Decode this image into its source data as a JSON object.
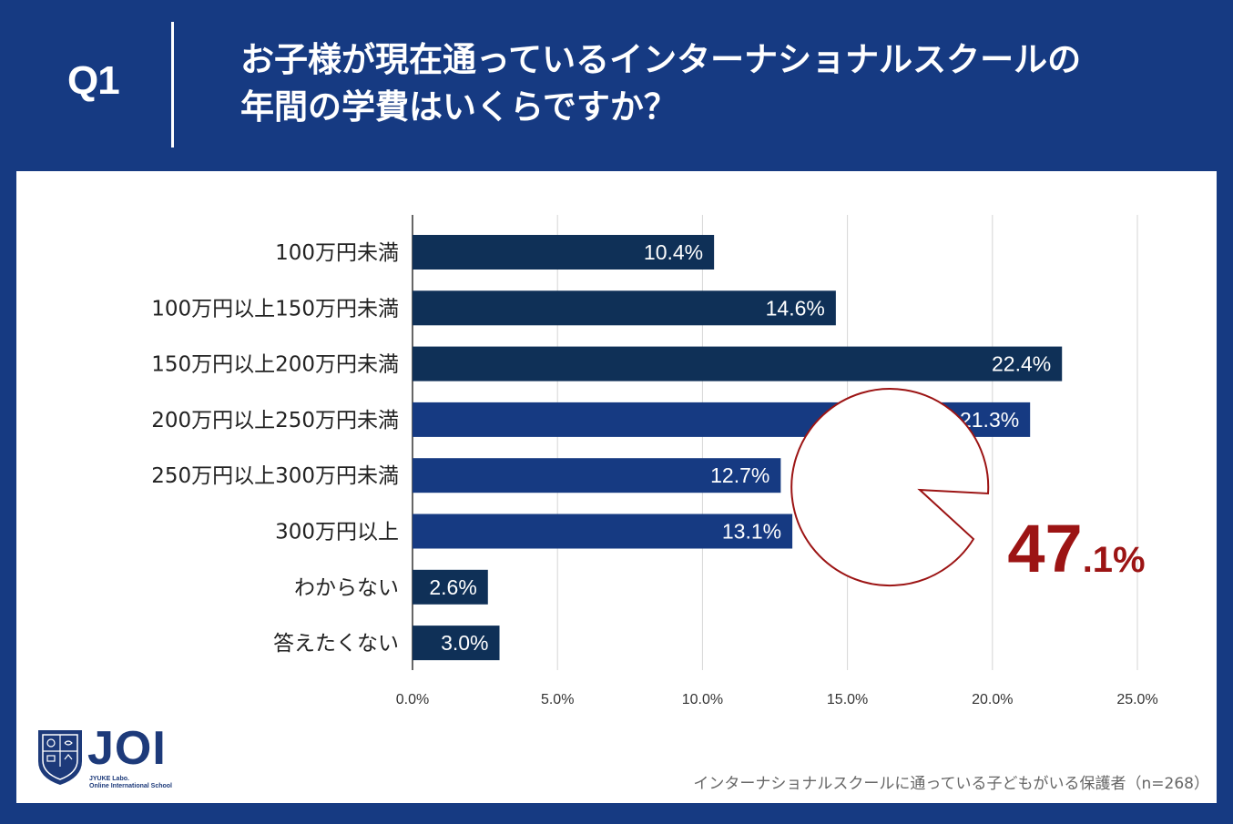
{
  "header": {
    "q_label": "Q1",
    "title_line1": "お子様が現在通っているインターナショナルスクールの",
    "title_line2": "年間の学費はいくらですか？"
  },
  "chart_data": {
    "type": "bar",
    "orientation": "horizontal",
    "categories": [
      "100万円未満",
      "100万円以上150万円未満",
      "150万円以上200万円未満",
      "200万円以上250万円未満",
      "250万円以上300万円未満",
      "300万円以上",
      "わからない",
      "答えたくない"
    ],
    "values": [
      10.4,
      14.6,
      22.4,
      21.3,
      12.7,
      13.1,
      2.6,
      3.0
    ],
    "value_labels": [
      "10.4%",
      "14.6%",
      "22.4%",
      "21.3%",
      "12.7%",
      "13.1%",
      "2.6%",
      "3.0%"
    ],
    "bar_colors": [
      "#0f3057",
      "#0f3057",
      "#0f3057",
      "#163a82",
      "#163a82",
      "#163a82",
      "#0f3057",
      "#0f3057"
    ],
    "xlim": [
      0,
      25
    ],
    "x_ticks": [
      0,
      5,
      10,
      15,
      20,
      25
    ],
    "x_tick_labels": [
      "0.0%",
      "5.0%",
      "10.0%",
      "15.0%",
      "20.0%",
      "25.0%"
    ],
    "grid": true,
    "callout": {
      "big": "47",
      "small": ".1%",
      "color": "#9c1414",
      "target_categories": [
        3,
        4,
        5
      ]
    }
  },
  "logo": {
    "name": "JOI",
    "sub_line1": "JYUKE Labo.",
    "sub_line2": "Online International School"
  },
  "footnote": "インターナショナルスクールに通っている子どもがいる保護者（n=268）",
  "colors": {
    "background": "#163a82",
    "panel": "#ffffff",
    "bar_dark": "#0f3057",
    "bar_blue": "#163a82",
    "accent": "#9c1414"
  }
}
